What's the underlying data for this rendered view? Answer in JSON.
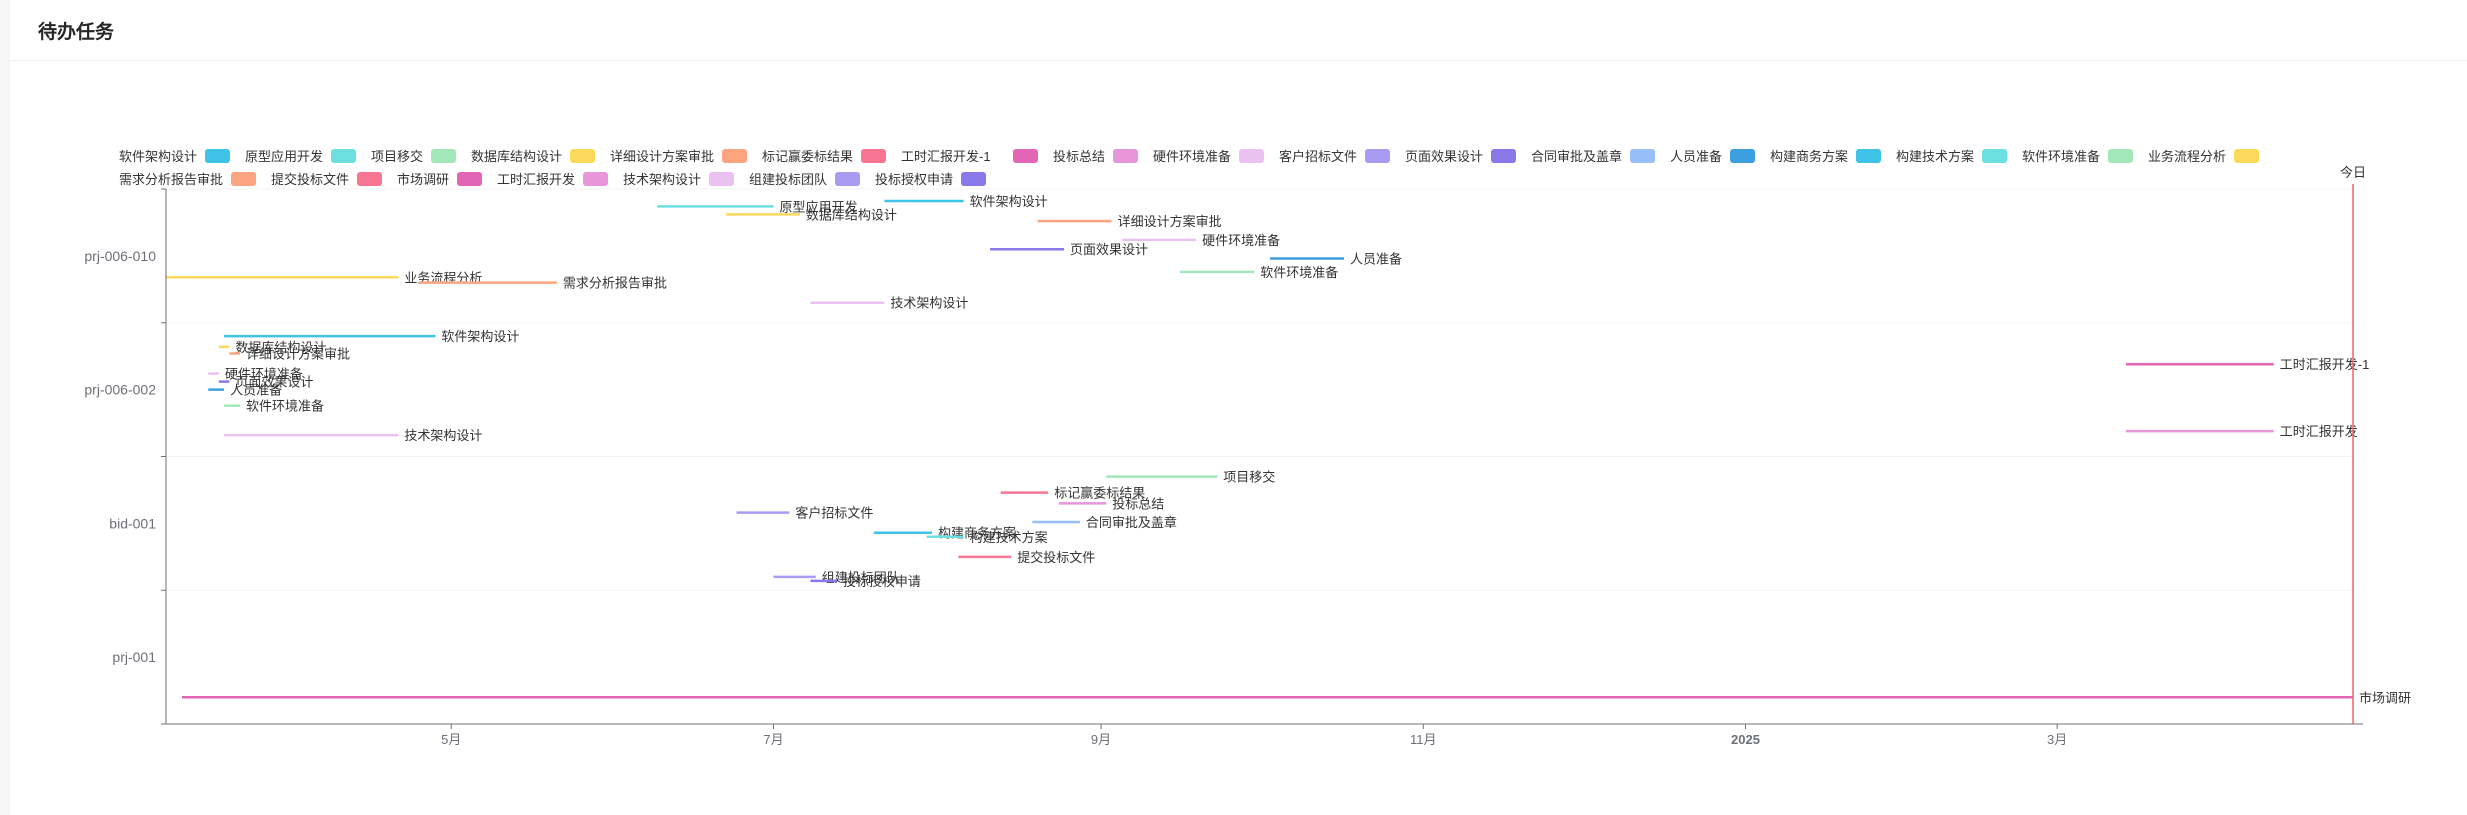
{
  "page": {
    "title": "待办任务"
  },
  "colors": {
    "axis": "#6e7079",
    "axis_label": "#6e7079",
    "today": "#ee6666",
    "label": "#333333"
  },
  "chart_data": {
    "type": "gantt",
    "title": "",
    "today_label": "今日",
    "today": "2025-04-26",
    "xlim": [
      "2024-03-08",
      "2025-04-26"
    ],
    "x_ticks": [
      {
        "date": "2024-05-01",
        "label": "5月",
        "bold": false
      },
      {
        "date": "2024-07-01",
        "label": "7月",
        "bold": false
      },
      {
        "date": "2024-09-01",
        "label": "9月",
        "bold": false
      },
      {
        "date": "2024-11-01",
        "label": "11月",
        "bold": false
      },
      {
        "date": "2025-01-01",
        "label": "2025",
        "bold": true
      },
      {
        "date": "2025-03-01",
        "label": "3月",
        "bold": false
      }
    ],
    "categories": [
      "prj-001",
      "bid-001",
      "prj-006-002",
      "prj-006-010"
    ],
    "legend": [
      {
        "name": "软件架构设计",
        "color": "#3ec3e6"
      },
      {
        "name": "原型应用开发",
        "color": "#6ce0e0"
      },
      {
        "name": "项目移交",
        "color": "#a3e8b8"
      },
      {
        "name": "数据库结构设计",
        "color": "#fcd95c"
      },
      {
        "name": "详细设计方案审批",
        "color": "#fca47f"
      },
      {
        "name": "标记赢委标结果",
        "color": "#f77493"
      },
      {
        "name": "工时汇报开发-1",
        "color": "#e266b5"
      },
      {
        "name": "投标总结",
        "color": "#e796d9"
      },
      {
        "name": "硬件环境准备",
        "color": "#ebc1f2"
      },
      {
        "name": "客户招标文件",
        "color": "#a99bf2"
      },
      {
        "name": "页面效果设计",
        "color": "#8878e8"
      },
      {
        "name": "合同审批及盖章",
        "color": "#97bef7"
      },
      {
        "name": "人员准备",
        "color": "#3d9ee0"
      },
      {
        "name": "构建商务方案",
        "color": "#3ec3e6"
      },
      {
        "name": "构建技术方案",
        "color": "#6ce0e0"
      },
      {
        "name": "软件环境准备",
        "color": "#a3e8b8"
      },
      {
        "name": "业务流程分析",
        "color": "#fcd95c"
      },
      {
        "name": "需求分析报告审批",
        "color": "#fca47f"
      },
      {
        "name": "提交投标文件",
        "color": "#f77493"
      },
      {
        "name": "市场调研",
        "color": "#e266b5"
      },
      {
        "name": "工时汇报开发",
        "color": "#e796d9"
      },
      {
        "name": "技术架构设计",
        "color": "#ebc1f2"
      },
      {
        "name": "组建投标团队",
        "color": "#a99bf2"
      },
      {
        "name": "投标授权申请",
        "color": "#8878e8"
      }
    ],
    "tasks": [
      {
        "category": "prj-001",
        "name": "市场调研",
        "start": "2024-03-11",
        "end": "2025-04-26",
        "offset": -0.3
      },
      {
        "category": "bid-001",
        "name": "项目移交",
        "start": "2024-09-02",
        "end": "2024-09-23",
        "offset": 0.35
      },
      {
        "category": "bid-001",
        "name": "标记赢委标结果",
        "start": "2024-08-13",
        "end": "2024-08-22",
        "offset": 0.23
      },
      {
        "category": "bid-001",
        "name": "投标总结",
        "start": "2024-08-24",
        "end": "2024-09-02",
        "offset": 0.15
      },
      {
        "category": "bid-001",
        "name": "客户招标文件",
        "start": "2024-06-24",
        "end": "2024-07-04",
        "offset": 0.08
      },
      {
        "category": "bid-001",
        "name": "合同审批及盖章",
        "start": "2024-08-19",
        "end": "2024-08-28",
        "offset": 0.01
      },
      {
        "category": "bid-001",
        "name": "构建商务方案",
        "start": "2024-07-20",
        "end": "2024-07-31",
        "offset": -0.07
      },
      {
        "category": "bid-001",
        "name": "构建技术方案",
        "start": "2024-07-30",
        "end": "2024-08-06",
        "offset": -0.1
      },
      {
        "category": "bid-001",
        "name": "提交投标文件",
        "start": "2024-08-05",
        "end": "2024-08-15",
        "offset": -0.25
      },
      {
        "category": "bid-001",
        "name": "组建投标团队",
        "start": "2024-07-01",
        "end": "2024-07-09",
        "offset": -0.4
      },
      {
        "category": "bid-001",
        "name": "投标授权申请",
        "start": "2024-07-08",
        "end": "2024-07-13",
        "offset": -0.43
      },
      {
        "category": "prj-006-002",
        "name": "软件架构设计",
        "start": "2024-03-19",
        "end": "2024-04-28",
        "offset": 0.4
      },
      {
        "category": "prj-006-002",
        "name": "数据库结构设计",
        "start": "2024-03-18",
        "end": "2024-03-20",
        "offset": 0.32
      },
      {
        "category": "prj-006-002",
        "name": "详细设计方案审批",
        "start": "2024-03-20",
        "end": "2024-03-22",
        "offset": 0.27
      },
      {
        "category": "prj-006-002",
        "name": "硬件环境准备",
        "start": "2024-03-16",
        "end": "2024-03-18",
        "offset": 0.12
      },
      {
        "category": "prj-006-002",
        "name": "页面效果设计",
        "start": "2024-03-18",
        "end": "2024-03-20",
        "offset": 0.06
      },
      {
        "category": "prj-006-002",
        "name": "人员准备",
        "start": "2024-03-16",
        "end": "2024-03-19",
        "offset": 0.0
      },
      {
        "category": "prj-006-002",
        "name": "软件环境准备",
        "start": "2024-03-19",
        "end": "2024-03-22",
        "offset": -0.12
      },
      {
        "category": "prj-006-002",
        "name": "技术架构设计",
        "start": "2024-03-19",
        "end": "2024-04-21",
        "offset": -0.34
      },
      {
        "category": "prj-006-002",
        "name": "工时汇报开发-1",
        "start": "2025-03-14",
        "end": "2025-04-11",
        "offset": 0.19
      },
      {
        "category": "prj-006-002",
        "name": "工时汇报开发",
        "start": "2025-03-14",
        "end": "2025-04-11",
        "offset": -0.31
      },
      {
        "category": "prj-006-010",
        "name": "原型应用开发",
        "start": "2024-06-09",
        "end": "2024-07-01",
        "offset": 0.37
      },
      {
        "category": "prj-006-010",
        "name": "软件架构设计",
        "start": "2024-07-22",
        "end": "2024-08-06",
        "offset": 0.41
      },
      {
        "category": "prj-006-010",
        "name": "数据库结构设计",
        "start": "2024-06-22",
        "end": "2024-07-06",
        "offset": 0.31
      },
      {
        "category": "prj-006-010",
        "name": "详细设计方案审批",
        "start": "2024-08-20",
        "end": "2024-09-03",
        "offset": 0.26
      },
      {
        "category": "prj-006-010",
        "name": "硬件环境准备",
        "start": "2024-09-05",
        "end": "2024-09-19",
        "offset": 0.12
      },
      {
        "category": "prj-006-010",
        "name": "页面效果设计",
        "start": "2024-08-11",
        "end": "2024-08-25",
        "offset": 0.05
      },
      {
        "category": "prj-006-010",
        "name": "人员准备",
        "start": "2024-10-03",
        "end": "2024-10-17",
        "offset": -0.02
      },
      {
        "category": "prj-006-010",
        "name": "软件环境准备",
        "start": "2024-09-16",
        "end": "2024-09-30",
        "offset": -0.12
      },
      {
        "category": "prj-006-010",
        "name": "业务流程分析",
        "start": "2024-03-08",
        "end": "2024-04-21",
        "offset": -0.16
      },
      {
        "category": "prj-006-010",
        "name": "需求分析报告审批",
        "start": "2024-04-25",
        "end": "2024-05-21",
        "offset": -0.2
      },
      {
        "category": "prj-006-010",
        "name": "技术架构设计",
        "start": "2024-07-08",
        "end": "2024-07-22",
        "offset": -0.35
      }
    ]
  }
}
